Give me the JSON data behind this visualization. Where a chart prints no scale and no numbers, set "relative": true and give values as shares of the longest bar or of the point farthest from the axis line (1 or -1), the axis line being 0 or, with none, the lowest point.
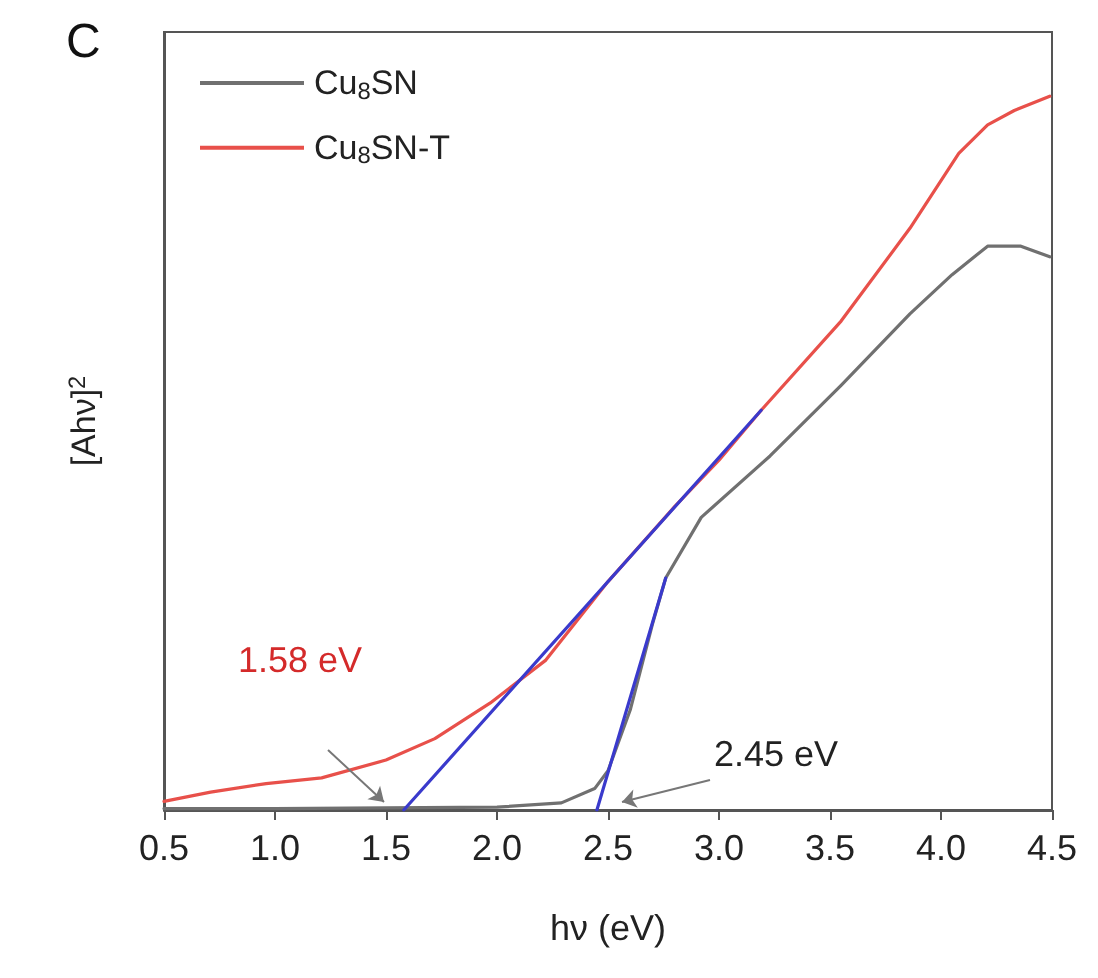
{
  "chart_data": {
    "type": "line",
    "title": "C",
    "xlabel": "hν (eV)",
    "ylabel": "[Ahν]$^{2}$",
    "relative": true,
    "xlim": [
      0.5,
      4.5
    ],
    "xticks": [
      0.5,
      {
        "value": 1,
        "label": "1.0"
      },
      1.5,
      {
        "value": 2,
        "label": "2.0"
      },
      2.5,
      {
        "value": 3,
        "label": "3.0"
      },
      3.5,
      {
        "value": 4,
        "label": "4.0"
      },
      4.5
    ],
    "tick_labels": "x",
    "grid": false,
    "legend": "top left",
    "marker": "none",
    "line_style": "solid",
    "series": [
      {
        "name": "Cu$_{8}$SN",
        "color": "#707070",
        "x": [
          0.5,
          1.0,
          1.5,
          2.0,
          2.29,
          2.44,
          2.5,
          2.6,
          2.7,
          2.76,
          2.92,
          3.23,
          3.55,
          3.86,
          4.05,
          4.21,
          4.36,
          4.49
        ],
        "values": [
          0.002,
          0.002,
          0.003,
          0.004,
          0.01,
          0.03,
          0.055,
          0.14,
          0.26,
          0.325,
          0.41,
          0.496,
          0.595,
          0.695,
          0.75,
          0.79,
          0.79,
          0.775
        ]
      },
      {
        "name": "Cu$_{8}$SN-T",
        "color": "#e8504a",
        "x": [
          0.5,
          0.71,
          0.96,
          1.21,
          1.5,
          1.72,
          1.97,
          2.22,
          2.5,
          2.8,
          3.0,
          3.19,
          3.55,
          3.86,
          4.08,
          4.21,
          4.33,
          4.49
        ],
        "values": [
          0.012,
          0.025,
          0.037,
          0.045,
          0.07,
          0.1,
          0.15,
          0.21,
          0.32,
          0.425,
          0.49,
          0.56,
          0.685,
          0.815,
          0.92,
          0.96,
          0.98,
          1.0
        ]
      },
      {
        "color": "#3a3acc",
        "x": [
          1.58,
          3.19
        ],
        "values": [
          0,
          0.56
        ]
      },
      {
        "color": "#3a3acc",
        "x": [
          2.45,
          2.76
        ],
        "values": [
          0,
          0.325
        ]
      }
    ],
    "annotations": [
      "1.58 eV",
      "2.45 eV"
    ]
  }
}
